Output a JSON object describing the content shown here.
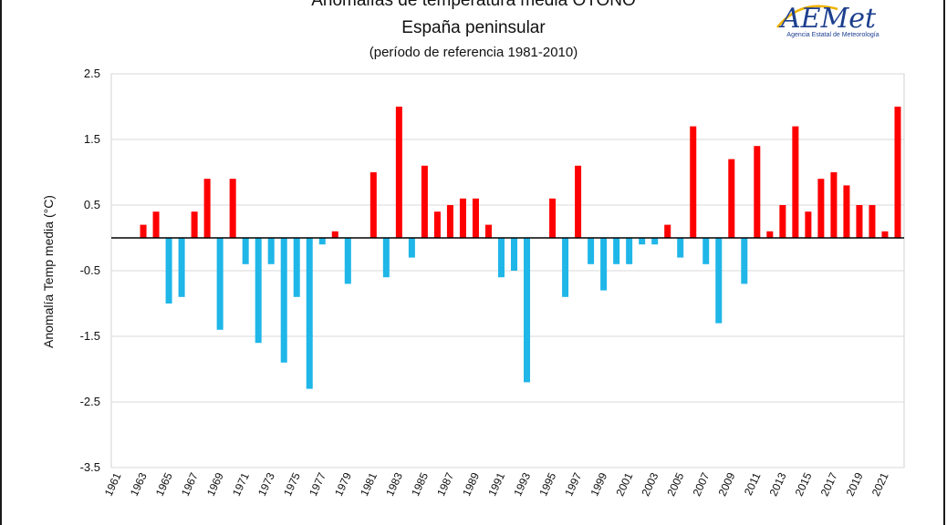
{
  "chart_data": {
    "type": "bar",
    "title": "Anomalías de temperatura media OTOÑO",
    "subtitle": "España peninsular",
    "note": "(período de referencia 1981-2010)",
    "ylabel": "Anomalía Temp media (°C)",
    "xlabel": "",
    "ylim": [
      -3.5,
      2.5
    ],
    "yticks": [
      "2.5",
      "1.5",
      "0.5",
      "-0.5",
      "-1.5",
      "-2.5",
      "-3.5"
    ],
    "ytick_values": [
      2.5,
      1.5,
      0.5,
      -0.5,
      -1.5,
      -2.5,
      -3.5
    ],
    "grid": true,
    "positive_color": "#ff0000",
    "negative_color": "#1fb6e8",
    "x": [
      1961,
      1962,
      1963,
      1964,
      1965,
      1966,
      1967,
      1968,
      1969,
      1970,
      1971,
      1972,
      1973,
      1974,
      1975,
      1976,
      1977,
      1978,
      1979,
      1980,
      1981,
      1982,
      1983,
      1984,
      1985,
      1986,
      1987,
      1988,
      1989,
      1990,
      1991,
      1992,
      1993,
      1994,
      1995,
      1996,
      1997,
      1998,
      1999,
      2000,
      2001,
      2002,
      2003,
      2004,
      2005,
      2006,
      2007,
      2008,
      2009,
      2010,
      2011,
      2012,
      2013,
      2014,
      2015,
      2016,
      2017,
      2018,
      2019,
      2020,
      2021,
      2022
    ],
    "xtick_labels": [
      "1961",
      "1963",
      "1965",
      "1967",
      "1969",
      "1971",
      "1973",
      "1975",
      "1977",
      "1979",
      "1981",
      "1983",
      "1985",
      "1987",
      "1989",
      "1991",
      "1993",
      "1995",
      "1997",
      "1999",
      "2001",
      "2003",
      "2005",
      "2007",
      "2009",
      "2011",
      "2013",
      "2015",
      "2017",
      "2019",
      "2021"
    ],
    "values": [
      0,
      0,
      0.2,
      0.4,
      -1.0,
      -0.9,
      0.4,
      0.9,
      -1.4,
      0.9,
      -0.4,
      -1.6,
      -0.4,
      -1.9,
      -0.9,
      -2.3,
      -0.1,
      0.1,
      -0.7,
      0,
      1.0,
      -0.6,
      2.0,
      -0.3,
      1.1,
      0.4,
      0.5,
      0.6,
      0.6,
      0.2,
      -0.6,
      -0.5,
      -2.2,
      0,
      0.6,
      -0.9,
      1.1,
      -0.4,
      -0.8,
      -0.4,
      -0.4,
      -0.1,
      -0.1,
      0.2,
      -0.3,
      1.7,
      -0.4,
      -1.3,
      1.2,
      -0.7,
      1.4,
      0.1,
      0.5,
      1.7,
      0.4,
      0.9,
      1.0,
      0.8,
      0.5,
      0.5,
      0.1,
      2.0
    ]
  },
  "logo": {
    "text": "AEMet",
    "subtext": "Agencia Estatal de Meteorología"
  }
}
